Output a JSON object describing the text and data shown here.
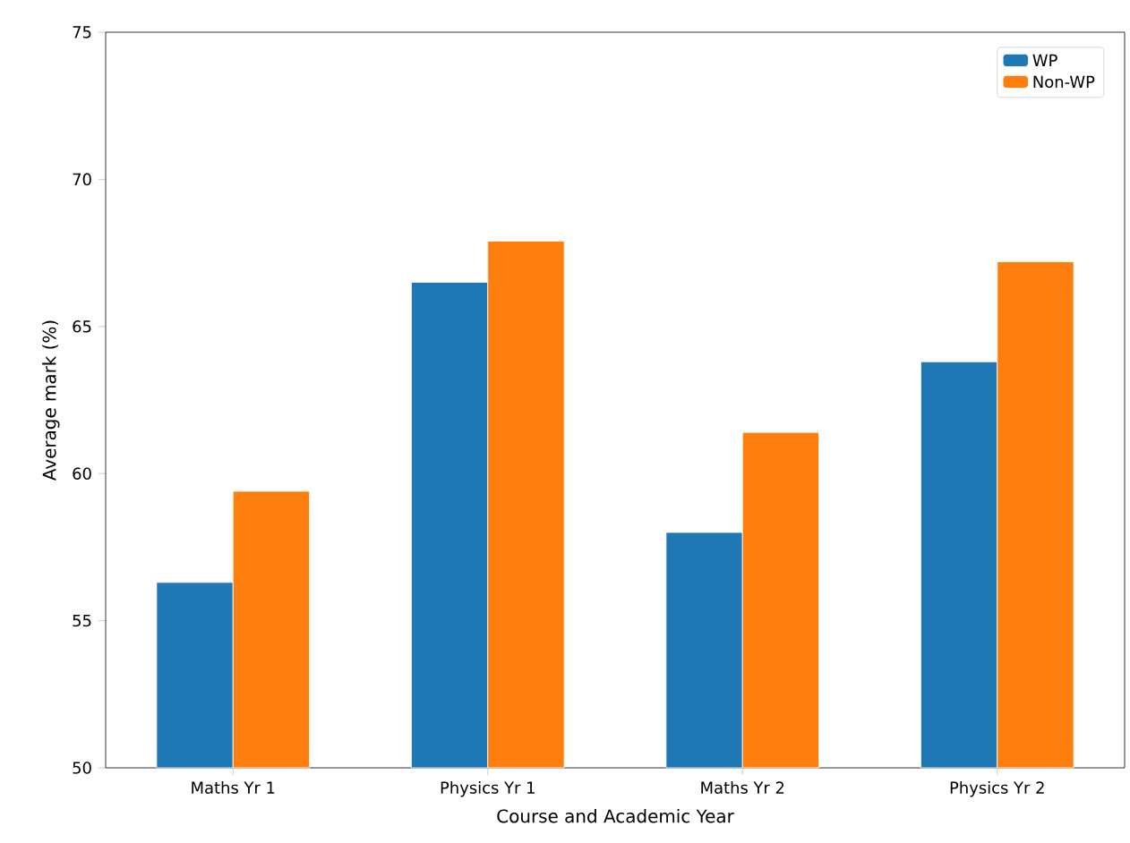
{
  "chart_data": {
    "type": "bar",
    "xlabel": "Course and Academic Year",
    "ylabel": "Average mark (%)",
    "categories": [
      "Maths Yr 1",
      "Physics Yr 1",
      "Maths Yr 2",
      "Physics Yr 2"
    ],
    "series": [
      {
        "name": "WP",
        "color": "#1f77b4",
        "values": [
          56.3,
          66.5,
          58.0,
          63.8
        ]
      },
      {
        "name": "Non-WP",
        "color": "#ff7f0e",
        "values": [
          59.4,
          67.9,
          61.4,
          67.2
        ]
      }
    ],
    "ylim": [
      50,
      75
    ],
    "yticks": [
      50,
      55,
      60,
      65,
      70,
      75
    ],
    "legend": "top right",
    "grid": false
  }
}
